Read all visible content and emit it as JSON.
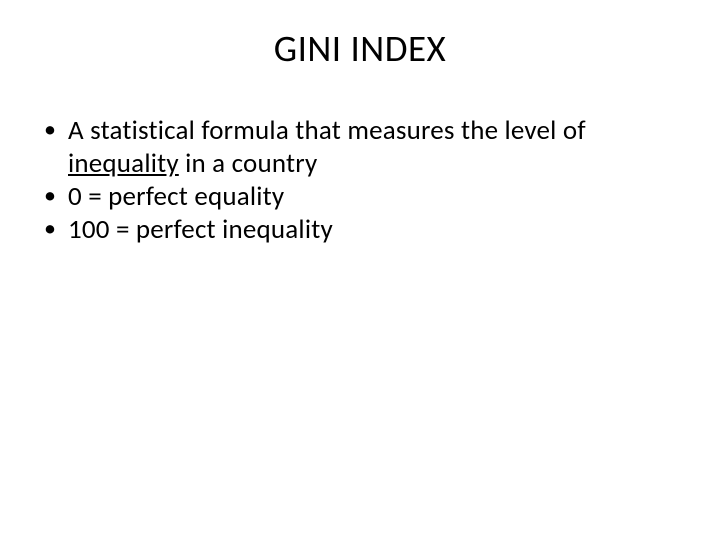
{
  "slide": {
    "title": "GINI INDEX",
    "bullets": [
      {
        "pre": "A statistical formula that measures the level of ",
        "underlined": "inequality",
        "post": " in a country"
      },
      {
        "pre": "0 = perfect equality",
        "underlined": "",
        "post": ""
      },
      {
        "pre": "100 = perfect inequality",
        "underlined": "",
        "post": ""
      }
    ],
    "colors": {
      "background": "#ffffff",
      "text": "#000000"
    },
    "typography": {
      "title_fontsize": 37,
      "body_fontsize": 27,
      "font_family": "Calibri"
    }
  }
}
